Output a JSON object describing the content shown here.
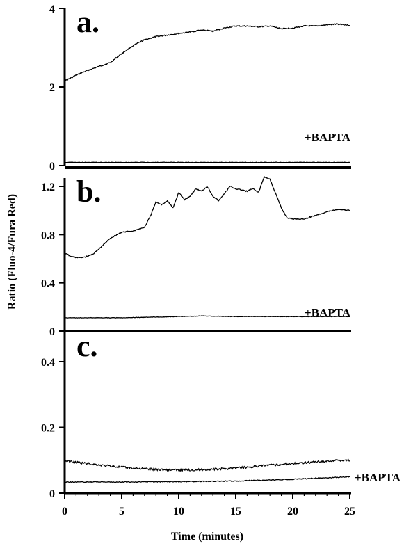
{
  "ylabel": "Ratio (Fluo-4/Fura Red)",
  "xlabel": "Time (minutes)",
  "x_ticks": [
    "0",
    "5",
    "10",
    "15",
    "20",
    "25"
  ],
  "chart_data": [
    {
      "type": "line",
      "panel_label": "a.",
      "xlim": [
        0,
        25
      ],
      "ylim": [
        0,
        4
      ],
      "y_ticks": [
        0,
        2,
        4
      ],
      "y_tick_labels": [
        "0",
        "2",
        "4"
      ],
      "annotation": "+BAPTA",
      "series": [
        {
          "role": "control",
          "x": [
            0,
            1,
            2,
            3,
            4,
            5,
            6,
            7,
            8,
            9,
            10,
            11,
            12,
            13,
            14,
            15,
            16,
            17,
            18,
            19,
            20,
            21,
            22,
            23,
            24,
            25
          ],
          "y": [
            2.15,
            2.3,
            2.42,
            2.52,
            2.62,
            2.85,
            3.05,
            3.2,
            3.28,
            3.32,
            3.36,
            3.4,
            3.45,
            3.42,
            3.5,
            3.55,
            3.55,
            3.53,
            3.55,
            3.48,
            3.5,
            3.55,
            3.55,
            3.58,
            3.6,
            3.57
          ]
        },
        {
          "role": "bapta",
          "x": [
            0,
            5,
            10,
            15,
            20,
            25
          ],
          "y": [
            0.08,
            0.08,
            0.08,
            0.08,
            0.08,
            0.08
          ]
        }
      ]
    },
    {
      "type": "line",
      "panel_label": "b.",
      "xlim": [
        0,
        25
      ],
      "ylim": [
        0,
        1.35
      ],
      "y_ticks": [
        0,
        0.4,
        0.8,
        1.2
      ],
      "y_tick_labels": [
        "0",
        "0.4",
        "0.8",
        "1.2"
      ],
      "annotation": "+BAPTA",
      "series": [
        {
          "role": "control",
          "x": [
            0,
            0.5,
            1,
            1.5,
            2,
            2.5,
            3,
            4,
            5,
            6,
            7,
            7.5,
            8,
            8.5,
            9,
            9.5,
            10,
            10.5,
            11,
            11.5,
            12,
            12.5,
            13,
            13.5,
            14,
            14.5,
            15,
            15.5,
            16,
            16.5,
            17,
            17.5,
            18,
            18.5,
            19,
            19.5,
            20,
            21,
            22,
            23,
            24,
            25
          ],
          "y": [
            0.65,
            0.62,
            0.61,
            0.61,
            0.62,
            0.64,
            0.68,
            0.77,
            0.82,
            0.83,
            0.86,
            0.95,
            1.07,
            1.05,
            1.08,
            1.02,
            1.15,
            1.09,
            1.12,
            1.18,
            1.16,
            1.2,
            1.12,
            1.08,
            1.14,
            1.2,
            1.18,
            1.17,
            1.16,
            1.18,
            1.15,
            1.28,
            1.26,
            1.14,
            1.02,
            0.94,
            0.93,
            0.93,
            0.96,
            0.99,
            1.01,
            1.0
          ]
        },
        {
          "role": "bapta",
          "x": [
            0,
            5,
            10,
            12,
            15,
            20,
            25
          ],
          "y": [
            0.11,
            0.11,
            0.12,
            0.125,
            0.12,
            0.12,
            0.12
          ]
        }
      ]
    },
    {
      "type": "line",
      "panel_label": "c.",
      "xlim": [
        0,
        25
      ],
      "ylim": [
        0,
        0.5
      ],
      "y_ticks": [
        0,
        0.2,
        0.4
      ],
      "y_tick_labels": [
        "0",
        "0.2",
        "0.4"
      ],
      "annotation": "+BAPTA",
      "series": [
        {
          "role": "control",
          "x": [
            0,
            2,
            4,
            6,
            8,
            10,
            12,
            14,
            16,
            18,
            20,
            22,
            24,
            25
          ],
          "y": [
            0.098,
            0.09,
            0.082,
            0.076,
            0.072,
            0.07,
            0.071,
            0.074,
            0.079,
            0.085,
            0.09,
            0.095,
            0.1,
            0.1
          ]
        },
        {
          "role": "bapta",
          "x": [
            0,
            5,
            10,
            15,
            20,
            25
          ],
          "y": [
            0.034,
            0.034,
            0.035,
            0.037,
            0.042,
            0.05
          ]
        }
      ]
    }
  ]
}
